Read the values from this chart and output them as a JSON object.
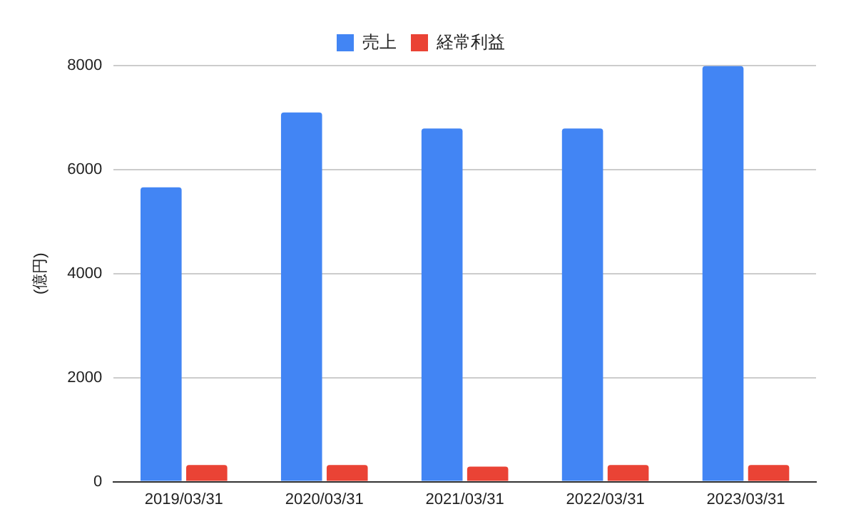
{
  "chart_data": {
    "type": "bar",
    "ylabel": "(億円)",
    "categories": [
      "2019/03/31",
      "2020/03/31",
      "2021/03/31",
      "2022/03/31",
      "2023/03/31"
    ],
    "series": [
      {
        "name": "売上",
        "color": "#4285f4",
        "values": [
          5660,
          7100,
          6790,
          6790,
          7990
        ]
      },
      {
        "name": "経常利益",
        "color": "#ea4335",
        "values": [
          320,
          320,
          290,
          320,
          320
        ]
      }
    ],
    "ylim": [
      0,
      8000
    ],
    "yticks": [
      0,
      2000,
      4000,
      6000,
      8000
    ],
    "grid": "y",
    "legend": "top"
  }
}
